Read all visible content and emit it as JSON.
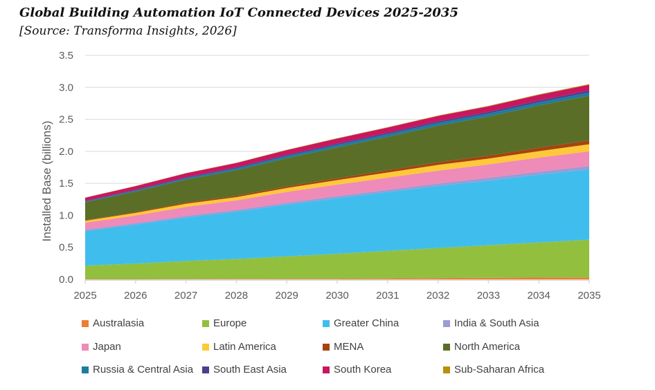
{
  "chart_data": {
    "type": "area",
    "stacked": true,
    "title": "Global Building Automation IoT Connected Devices 2025-2035",
    "subtitle": "[Source: Transforma Insights, 2026]",
    "xlabel": "",
    "ylabel": "Installed Base (billions)",
    "ylim": [
      0,
      3.5
    ],
    "yticks": [
      "0.0",
      "0.5",
      "1.0",
      "1.5",
      "2.0",
      "2.5",
      "3.0",
      "3.5"
    ],
    "grid": true,
    "legend_position": "bottom",
    "x": [
      "2025",
      "2026",
      "2027",
      "2028",
      "2029",
      "2030",
      "2031",
      "2032",
      "2033",
      "2034",
      "2035"
    ],
    "series": [
      {
        "name": "Australasia",
        "color": "#ED7D31",
        "values": [
          0.005,
          0.006,
          0.007,
          0.008,
          0.009,
          0.01,
          0.015,
          0.02,
          0.024,
          0.027,
          0.03
        ]
      },
      {
        "name": "Europe",
        "color": "#92C03E",
        "values": [
          0.21,
          0.24,
          0.28,
          0.31,
          0.35,
          0.39,
          0.43,
          0.47,
          0.51,
          0.55,
          0.59
        ]
      },
      {
        "name": "Greater China",
        "color": "#3FBEEE",
        "values": [
          0.54,
          0.61,
          0.68,
          0.74,
          0.81,
          0.87,
          0.92,
          0.97,
          1.01,
          1.06,
          1.1
        ]
      },
      {
        "name": "India & South Asia",
        "color": "#9B9BD5",
        "values": [
          0.02,
          0.022,
          0.024,
          0.026,
          0.028,
          0.03,
          0.034,
          0.038,
          0.042,
          0.046,
          0.05
        ]
      },
      {
        "name": "Japan",
        "color": "#EE8BB8",
        "values": [
          0.11,
          0.12,
          0.14,
          0.15,
          0.17,
          0.18,
          0.19,
          0.2,
          0.21,
          0.22,
          0.23
        ]
      },
      {
        "name": "Latin America",
        "color": "#FFC838",
        "values": [
          0.03,
          0.04,
          0.05,
          0.05,
          0.06,
          0.07,
          0.08,
          0.09,
          0.09,
          0.1,
          0.11
        ]
      },
      {
        "name": "MENA",
        "color": "#A5440E",
        "values": [
          0.01,
          0.014,
          0.018,
          0.022,
          0.026,
          0.03,
          0.036,
          0.042,
          0.048,
          0.054,
          0.06
        ]
      },
      {
        "name": "North America",
        "color": "#5A6E27",
        "values": [
          0.28,
          0.32,
          0.36,
          0.4,
          0.44,
          0.48,
          0.52,
          0.57,
          0.61,
          0.66,
          0.7
        ]
      },
      {
        "name": "Russia & Central Asia",
        "color": "#1F7C9E",
        "values": [
          0.01,
          0.016,
          0.022,
          0.028,
          0.034,
          0.04,
          0.042,
          0.044,
          0.046,
          0.048,
          0.05
        ]
      },
      {
        "name": "South East Asia",
        "color": "#4B3F8F",
        "values": [
          0.01,
          0.012,
          0.014,
          0.016,
          0.018,
          0.02,
          0.022,
          0.024,
          0.026,
          0.028,
          0.03
        ]
      },
      {
        "name": "South Korea",
        "color": "#C8175F",
        "values": [
          0.05,
          0.056,
          0.062,
          0.068,
          0.074,
          0.08,
          0.082,
          0.084,
          0.086,
          0.088,
          0.09
        ]
      },
      {
        "name": "Sub-Saharan Africa",
        "color": "#B8900A",
        "values": [
          0.003,
          0.0034,
          0.0038,
          0.0042,
          0.0046,
          0.005,
          0.006,
          0.007,
          0.008,
          0.009,
          0.01
        ]
      }
    ]
  }
}
